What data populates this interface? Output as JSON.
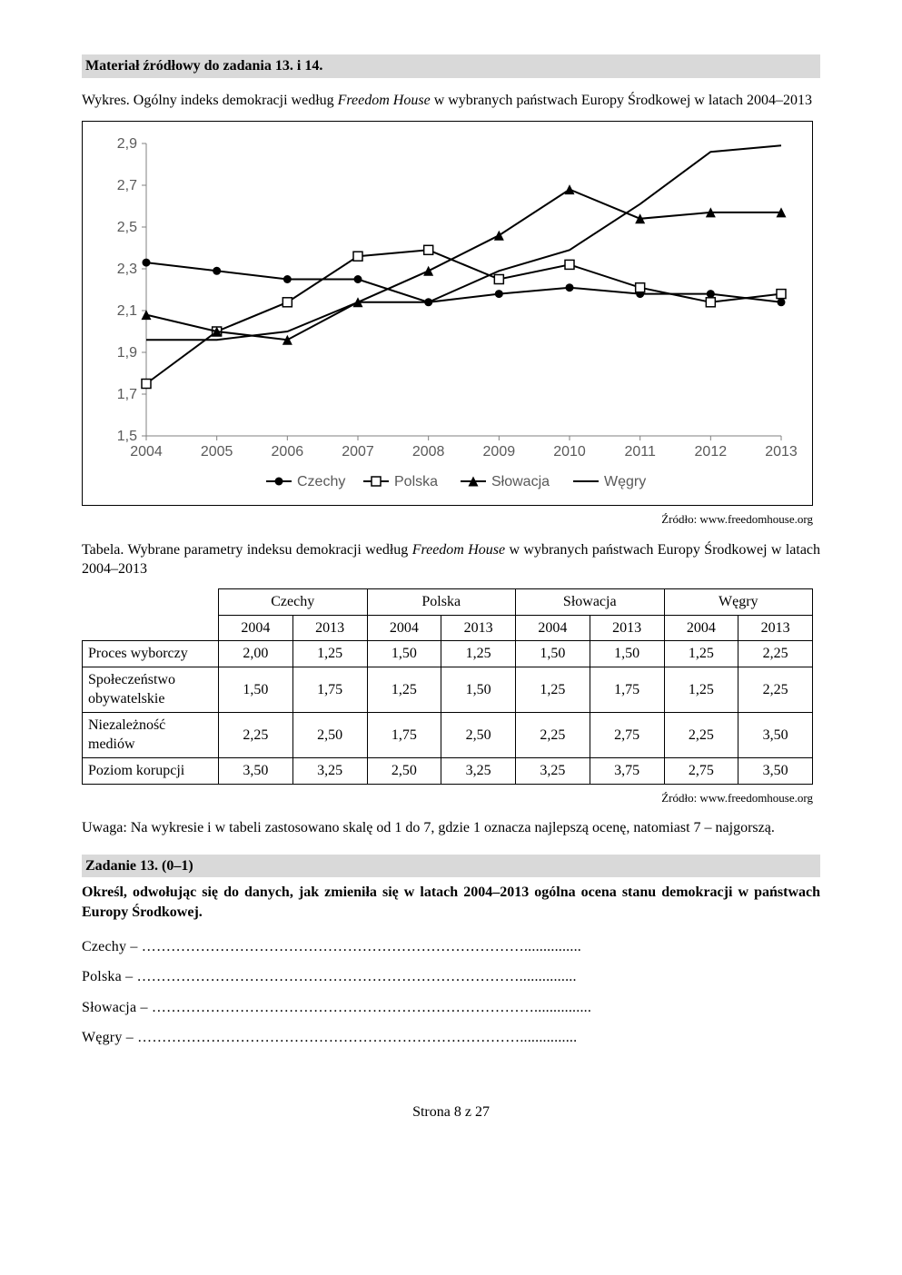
{
  "header1": "Materiał źródłowy do zadania 13. i 14.",
  "chart_intro_prefix": "Wykres. Ogólny indeks demokracji według ",
  "chart_intro_italic": "Freedom House",
  "chart_intro_suffix": " w wybranych państwach Europy Środkowej w latach 2004–2013",
  "chart_source": "Źródło: www.freedomhouse.org",
  "chart": {
    "type": "line",
    "background_color": "#ffffff",
    "grid_color": "#c0c0c0",
    "axis_color": "#808080",
    "tick_fontsize": 16,
    "legend_fontsize": 16,
    "xlim": [
      2004,
      2013
    ],
    "ylim": [
      1.5,
      2.9
    ],
    "ytick_step": 0.2,
    "yticks": [
      "1,5",
      "1,7",
      "1,9",
      "2,1",
      "2,3",
      "2,5",
      "2,7",
      "2,9"
    ],
    "xticks": [
      "2004",
      "2005",
      "2006",
      "2007",
      "2008",
      "2009",
      "2010",
      "2011",
      "2012",
      "2013"
    ],
    "series": {
      "czechy": {
        "label": "Czechy",
        "color": "#000000",
        "marker": "circle",
        "values": [
          2.33,
          2.29,
          2.25,
          2.25,
          2.14,
          2.18,
          2.21,
          2.18,
          2.18,
          2.14
        ]
      },
      "polska": {
        "label": "Polska",
        "color": "#000000",
        "marker": "square-open",
        "values": [
          1.75,
          2.0,
          2.14,
          2.36,
          2.39,
          2.25,
          2.32,
          2.21,
          2.14,
          2.18
        ]
      },
      "slowacja": {
        "label": "Słowacja",
        "color": "#000000",
        "marker": "triangle",
        "values": [
          2.08,
          2.0,
          1.96,
          2.14,
          2.29,
          2.46,
          2.68,
          2.54,
          2.57,
          2.57
        ]
      },
      "wegry": {
        "label": "Węgry",
        "color": "#000000",
        "marker": "none",
        "values": [
          1.96,
          1.96,
          2.0,
          2.14,
          2.14,
          2.29,
          2.39,
          2.61,
          2.86,
          2.89
        ]
      }
    }
  },
  "table_intro_prefix": "Tabela. Wybrane parametry indeksu demokracji według ",
  "table_intro_italic": "Freedom House",
  "table_intro_suffix": " w wybranych państwach Europy Środkowej w latach 2004–2013",
  "table": {
    "countries": [
      "Czechy",
      "Polska",
      "Słowacja",
      "Węgry"
    ],
    "years": [
      "2004",
      "2013",
      "2004",
      "2013",
      "2004",
      "2013",
      "2004",
      "2013"
    ],
    "rows": [
      {
        "label": "Proces wyborczy",
        "values": [
          "2,00",
          "1,25",
          "1,50",
          "1,25",
          "1,50",
          "1,50",
          "1,25",
          "2,25"
        ]
      },
      {
        "label": "Społeczeństwo obywatelskie",
        "values": [
          "1,50",
          "1,75",
          "1,25",
          "1,50",
          "1,25",
          "1,75",
          "1,25",
          "2,25"
        ]
      },
      {
        "label": "Niezależność mediów",
        "values": [
          "2,25",
          "2,50",
          "1,75",
          "2,50",
          "2,25",
          "2,75",
          "2,25",
          "3,50"
        ]
      },
      {
        "label": "Poziom korupcji",
        "values": [
          "3,50",
          "3,25",
          "2,50",
          "3,25",
          "3,25",
          "3,75",
          "2,75",
          "3,50"
        ]
      }
    ]
  },
  "table_source": "Źródło: www.freedomhouse.org",
  "note": "Uwaga: Na wykresie i w tabeli zastosowano skalę od 1 do 7, gdzie 1 oznacza najlepszą ocenę, natomiast 7 – najgorszą.",
  "task": {
    "header": "Zadanie 13. (0–1)",
    "text": "Określ, odwołując się do danych, jak zmieniła się w latach 2004–2013 ogólna ocena stanu demokracji w państwach Europy Środkowej."
  },
  "answers": [
    {
      "country": "Czechy"
    },
    {
      "country": "Polska"
    },
    {
      "country": "Słowacja"
    },
    {
      "country": "Węgry"
    }
  ],
  "footer": "Strona 8 z 27"
}
